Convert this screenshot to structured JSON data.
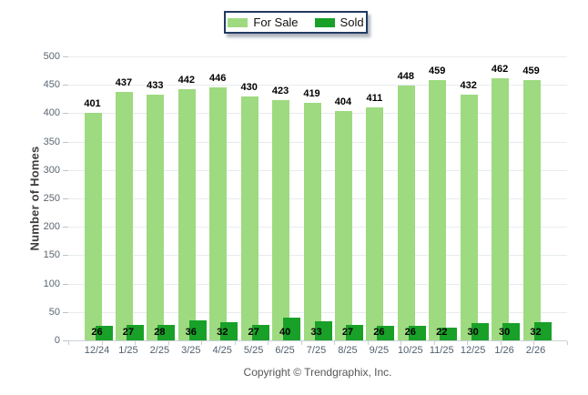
{
  "chart_data": {
    "type": "bar",
    "title": "",
    "categories": [
      "12/24",
      "1/25",
      "2/25",
      "3/25",
      "4/25",
      "5/25",
      "6/25",
      "7/25",
      "8/25",
      "9/25",
      "10/25",
      "11/25",
      "12/25",
      "1/26",
      "2/26"
    ],
    "series": [
      {
        "name": "For Sale",
        "color": "#9EDA80",
        "values": [
          401,
          437,
          433,
          442,
          446,
          430,
          423,
          419,
          404,
          411,
          448,
          459,
          432,
          462,
          459
        ]
      },
      {
        "name": "Sold",
        "color": "#18A028",
        "values": [
          26,
          27,
          28,
          36,
          32,
          27,
          40,
          33,
          27,
          26,
          26,
          22,
          30,
          30,
          32
        ]
      }
    ],
    "xlabel": "",
    "ylabel": "Number of Homes",
    "ylim": [
      0,
      500
    ],
    "ytick_step": 50,
    "grid": true,
    "legend_position": "top-center",
    "bar_labels": true
  },
  "legend": {
    "items": [
      {
        "label": "For Sale",
        "color": "#9EDA80"
      },
      {
        "label": "Sold",
        "color": "#18A028"
      }
    ],
    "border_color": "#223a63"
  },
  "footer": {
    "copyright": "Copyright © Trendgraphix, Inc."
  }
}
